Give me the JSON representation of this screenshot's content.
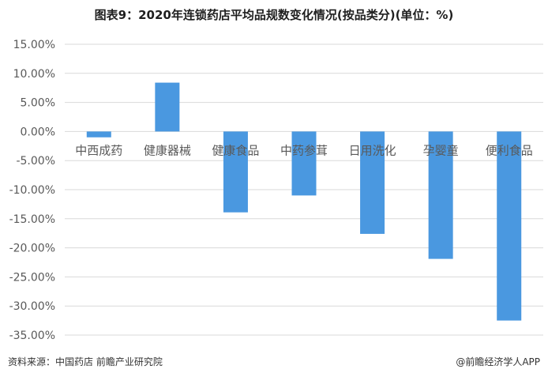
{
  "chart_data": {
    "type": "bar",
    "title": "图表9：2020年连锁药店平均品规数变化情况(按品类分)(单位：%)",
    "categories": [
      "中西成药",
      "健康器械",
      "健康食品",
      "中药参茸",
      "日用洗化",
      "孕婴童",
      "便利食品"
    ],
    "values": [
      -1.0,
      8.4,
      -13.9,
      -11.0,
      -17.6,
      -21.9,
      -32.5
    ],
    "yticks": [
      "15.00%",
      "10.00%",
      "5.00%",
      "0.00%",
      "-5.00%",
      "-10.00%",
      "-15.00%",
      "-20.00%",
      "-25.00%",
      "-30.00%",
      "-35.00%"
    ],
    "ylim": [
      -35,
      15
    ],
    "grid": true,
    "bar_color": "#4a98e0"
  },
  "footer": {
    "source": "资料来源：中国药店 前瞻产业研究院",
    "brand": "@前瞻经济学人APP"
  }
}
